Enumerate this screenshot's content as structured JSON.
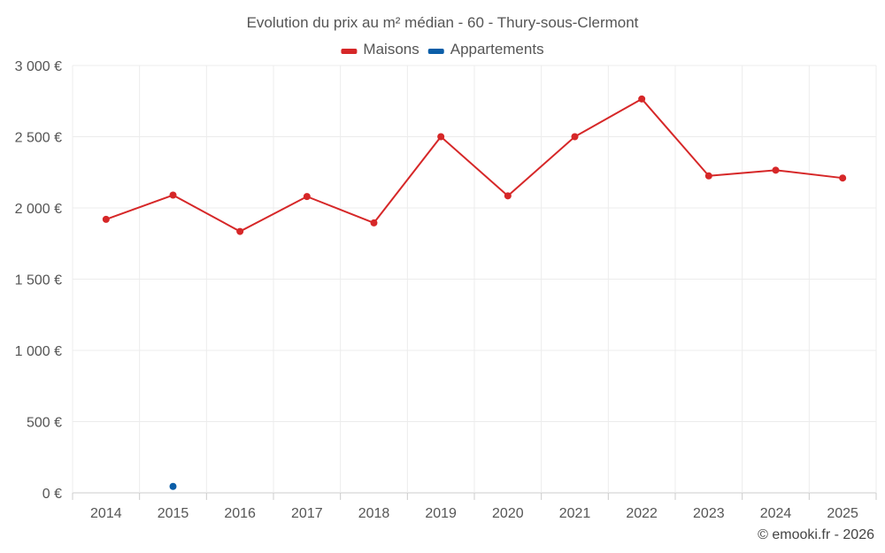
{
  "chart_data": {
    "type": "line",
    "title": "Evolution du prix au m² médian - 60 - Thury-sous-Clermont",
    "categories": [
      "2014",
      "2015",
      "2016",
      "2017",
      "2018",
      "2019",
      "2020",
      "2021",
      "2022",
      "2023",
      "2024",
      "2025"
    ],
    "series": [
      {
        "name": "Maisons",
        "color": "#d62728",
        "values": [
          1920,
          2090,
          1835,
          2080,
          1895,
          2500,
          2085,
          2500,
          2765,
          2225,
          2265,
          2210
        ]
      },
      {
        "name": "Appartements",
        "color": "#0b5ea8",
        "values": [
          null,
          45,
          null,
          null,
          null,
          null,
          null,
          null,
          null,
          null,
          null,
          null
        ]
      }
    ],
    "ylim": [
      0,
      3000
    ],
    "yticks": [
      0,
      500,
      1000,
      1500,
      2000,
      2500,
      3000
    ],
    "ytick_labels": [
      "0 €",
      "500 €",
      "1 000 €",
      "1 500 €",
      "2 000 €",
      "2 500 €",
      "3 000 €"
    ],
    "xlabel": "",
    "ylabel": "",
    "grid": true,
    "legend": "top-center"
  },
  "credit": "© emooki.fr - 2026"
}
